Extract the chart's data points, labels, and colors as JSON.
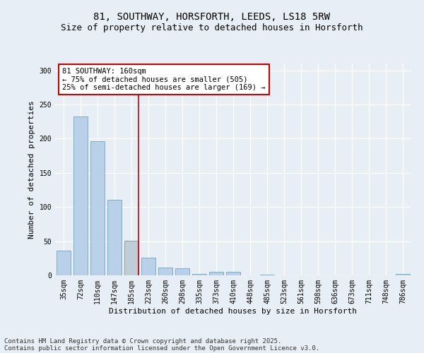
{
  "title_line1": "81, SOUTHWAY, HORSFORTH, LEEDS, LS18 5RW",
  "title_line2": "Size of property relative to detached houses in Horsforth",
  "xlabel": "Distribution of detached houses by size in Horsforth",
  "ylabel": "Number of detached properties",
  "categories": [
    "35sqm",
    "72sqm",
    "110sqm",
    "147sqm",
    "185sqm",
    "223sqm",
    "260sqm",
    "298sqm",
    "335sqm",
    "373sqm",
    "410sqm",
    "448sqm",
    "485sqm",
    "523sqm",
    "561sqm",
    "598sqm",
    "636sqm",
    "673sqm",
    "711sqm",
    "748sqm",
    "786sqm"
  ],
  "values": [
    36,
    232,
    196,
    111,
    51,
    26,
    11,
    10,
    2,
    5,
    5,
    0,
    1,
    0,
    0,
    0,
    0,
    0,
    0,
    0,
    2
  ],
  "bar_color": "#b8d0e8",
  "bar_edge_color": "#7aafc8",
  "highlight_bar_index": 4,
  "highlight_bar_color": "#c0ccd8",
  "highlight_bar_edge_color": "#999999",
  "vline_color": "#cc0000",
  "vline_bar_index": 4,
  "annotation_text": "81 SOUTHWAY: 160sqm\n← 75% of detached houses are smaller (505)\n25% of semi-detached houses are larger (169) →",
  "annotation_box_facecolor": "#ffffff",
  "annotation_box_edgecolor": "#cc0000",
  "ylim": [
    0,
    310
  ],
  "yticks": [
    0,
    50,
    100,
    150,
    200,
    250,
    300
  ],
  "background_color": "#e8eef5",
  "plot_background_color": "#e8eef5",
  "grid_color": "#ffffff",
  "footer_line1": "Contains HM Land Registry data © Crown copyright and database right 2025.",
  "footer_line2": "Contains public sector information licensed under the Open Government Licence v3.0.",
  "title_fontsize": 10,
  "subtitle_fontsize": 9,
  "axis_label_fontsize": 8,
  "tick_fontsize": 7,
  "annotation_fontsize": 7.5,
  "footer_fontsize": 6.5
}
